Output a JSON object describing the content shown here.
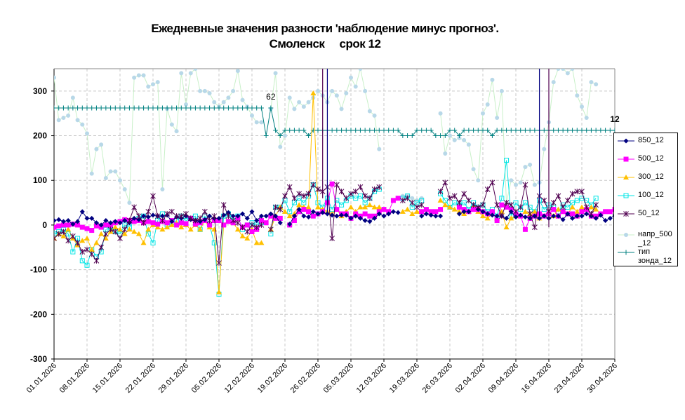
{
  "chart_data": {
    "type": "line",
    "title_line1": "Ежедневные значения разности 'наблюдение минус прогноз'.",
    "title_line2": "Смоленск     срок 12",
    "ylim": [
      -300,
      350
    ],
    "yticks": [
      "-300",
      "-200",
      "-100",
      "0",
      "100",
      "200",
      "300"
    ],
    "ytick_values": [
      -300,
      -200,
      -100,
      0,
      100,
      200,
      300
    ],
    "xlim": [
      "2026-01-01",
      "2026-04-30"
    ],
    "xticks": [
      "01.01.2026",
      "08.01.2026",
      "15.01.2026",
      "22.01.2026",
      "29.01.2026",
      "05.02.2026",
      "12.02.2026",
      "19.02.2026",
      "26.02.2026",
      "05.03.2026",
      "12.03.2026",
      "19.03.2026",
      "26.03.2026",
      "02.04.2026",
      "09.04.2026",
      "16.04.2026",
      "23.04.2026",
      "30.04.2026"
    ],
    "grid": true,
    "legend_position": "right",
    "annotations": [
      {
        "text": "62",
        "x": "2026-02-16",
        "y": 262
      },
      {
        "text": "12",
        "x": "2026-04-30",
        "y": 212
      }
    ],
    "series": [
      {
        "name": "850_12",
        "color": "#000080",
        "marker": "diamond",
        "values": [
          10,
          12,
          8,
          10,
          2,
          8,
          30,
          15,
          15,
          5,
          0,
          10,
          5,
          8,
          5,
          10,
          5,
          15,
          12,
          20,
          18,
          22,
          20,
          20,
          22,
          8,
          18,
          15,
          20,
          12,
          10,
          8,
          12,
          20,
          15,
          15,
          22,
          28,
          20,
          20,
          25,
          15,
          30,
          10,
          20,
          20,
          25,
          20,
          5,
          null,
          2,
          20,
          35,
          20,
          18,
          30,
          25,
          28,
          25,
          22,
          20,
          22,
          22,
          15,
          20,
          15,
          10,
          8,
          15,
          25,
          20,
          25,
          30,
          28,
          null,
          null,
          null,
          null,
          20,
          25,
          22,
          20,
          20,
          null,
          null,
          null,
          25,
          30,
          30,
          null,
          35,
          30,
          25,
          22,
          20,
          20,
          15,
          30,
          18,
          22,
          18,
          15,
          20,
          15,
          20,
          15,
          20,
          20,
          12,
          25,
          15,
          20,
          20,
          25,
          20,
          15,
          22,
          10,
          15,
          22
        ]
      },
      {
        "name": "500_12",
        "color": "#FF00FF",
        "marker": "square",
        "values": [
          -5,
          -2,
          0,
          0,
          2,
          0,
          -5,
          -8,
          -12,
          -2,
          -5,
          0,
          0,
          5,
          8,
          12,
          10,
          8,
          10,
          5,
          8,
          5,
          2,
          8,
          5,
          10,
          0,
          5,
          3,
          15,
          2,
          5,
          10,
          0,
          10,
          10,
          0,
          8,
          5,
          15,
          -5,
          0,
          -15,
          -10,
          10,
          5,
          20,
          15,
          15,
          null,
          0,
          10,
          30,
          35,
          30,
          20,
          25,
          30,
          50,
          92,
          35,
          25,
          25,
          15,
          25,
          20,
          25,
          20,
          20,
          30,
          35,
          30,
          55,
          60,
          null,
          null,
          null,
          null,
          30,
          35,
          30,
          30,
          35,
          null,
          null,
          null,
          40,
          35,
          30,
          35,
          35,
          30,
          25,
          30,
          10,
          45,
          40,
          35,
          25,
          20,
          -10,
          15,
          20,
          25,
          20,
          25,
          35,
          20,
          30,
          25,
          25,
          20,
          30,
          35,
          20,
          20,
          25,
          30,
          30,
          35
        ]
      },
      {
        "name": "300_12",
        "color": "#FFC000",
        "marker": "triangle",
        "values": [
          -30,
          -20,
          -25,
          -10,
          -30,
          -45,
          -35,
          -30,
          -55,
          -40,
          -20,
          -30,
          -15,
          -5,
          -10,
          -20,
          -10,
          -15,
          -20,
          -40,
          -10,
          0,
          -5,
          -10,
          -5,
          0,
          5,
          -5,
          0,
          -10,
          0,
          -10,
          10,
          -5,
          -10,
          -150,
          0,
          10,
          5,
          -10,
          -25,
          -30,
          -10,
          -40,
          -40,
          null,
          -10,
          20,
          40,
          30,
          20,
          25,
          45,
          40,
          40,
          295,
          40,
          35,
          30,
          25,
          35,
          20,
          30,
          40,
          30,
          40,
          40,
          45,
          40,
          40,
          null,
          null,
          null,
          null,
          30,
          35,
          25,
          30,
          30,
          null,
          null,
          null,
          55,
          45,
          40,
          35,
          30,
          25,
          30,
          40,
          30,
          20,
          15,
          25,
          15,
          30,
          -5,
          15,
          20,
          20,
          30,
          25,
          30,
          15,
          20,
          30,
          20,
          35,
          30,
          25,
          40,
          30,
          40,
          35,
          40,
          35
        ]
      },
      {
        "name": "100_12",
        "color": "#00E5E5",
        "marker": "square-open",
        "values": [
          -20,
          -15,
          -10,
          -20,
          -60,
          -30,
          -80,
          -90,
          -55,
          -70,
          -60,
          -10,
          -5,
          -15,
          -20,
          0,
          -5,
          10,
          15,
          20,
          -20,
          -40,
          10,
          25,
          0,
          5,
          10,
          20,
          10,
          15,
          20,
          -10,
          20,
          0,
          -40,
          -155,
          20,
          25,
          10,
          20,
          -10,
          0,
          5,
          0,
          5,
          null,
          -20,
          40,
          40,
          55,
          30,
          50,
          60,
          50,
          65,
          90,
          50,
          40,
          60,
          35,
          55,
          45,
          55,
          65,
          60,
          65,
          50,
          60,
          75,
          80,
          null,
          null,
          null,
          null,
          60,
          65,
          40,
          50,
          55,
          null,
          null,
          null,
          70,
          55,
          40,
          50,
          45,
          50,
          35,
          50,
          40,
          45,
          30,
          35,
          20,
          60,
          145,
          20,
          50,
          35,
          50,
          40,
          30,
          55,
          35,
          45,
          40,
          30,
          45,
          40,
          50,
          55,
          60,
          55,
          45,
          60
        ]
      },
      {
        "name": "50_12",
        "color": "#500050",
        "marker": "star",
        "values": [
          -30,
          -20,
          -15,
          -35,
          -25,
          -40,
          -60,
          -55,
          -65,
          -80,
          -50,
          -20,
          -10,
          -15,
          -30,
          -10,
          10,
          40,
          20,
          5,
          30,
          65,
          20,
          10,
          25,
          30,
          20,
          20,
          25,
          15,
          10,
          15,
          30,
          10,
          20,
          -85,
          45,
          20,
          10,
          5,
          -5,
          -15,
          0,
          -5,
          0,
          null,
          -10,
          40,
          35,
          65,
          85,
          60,
          70,
          65,
          70,
          90,
          80,
          75,
          85,
          -30,
          90,
          75,
          60,
          70,
          75,
          85,
          65,
          60,
          80,
          85,
          null,
          null,
          null,
          null,
          55,
          60,
          50,
          40,
          45,
          null,
          null,
          null,
          75,
          95,
          60,
          65,
          50,
          70,
          55,
          45,
          40,
          45,
          80,
          95,
          45,
          20,
          50,
          45,
          30,
          40,
          90,
          25,
          -5,
          65,
          55,
          30,
          50,
          65,
          40,
          55,
          70,
          75,
          75,
          40,
          25,
          45
        ]
      },
      {
        "name": "напр_500 _12",
        "color": "#B8D8E8",
        "line_color": "#C8F0C8",
        "marker": "circle",
        "values": [
          330,
          235,
          240,
          245,
          285,
          235,
          225,
          205,
          115,
          170,
          180,
          105,
          120,
          120,
          100,
          80,
          50,
          330,
          335,
          335,
          310,
          315,
          320,
          80,
          260,
          225,
          210,
          340,
          270,
          340,
          350,
          300,
          300,
          295,
          275,
          265,
          275,
          285,
          300,
          345,
          280,
          265,
          245,
          230,
          230,
          null,
          260,
          340,
          175,
          200,
          285,
          260,
          275,
          265,
          275,
          285,
          300,
          290,
          275,
          300,
          290,
          260,
          295,
          330,
          310,
          350,
          300,
          255,
          245,
          170,
          null,
          null,
          null,
          null,
          65,
          65,
          60,
          55,
          60,
          null,
          null,
          null,
          250,
          160,
          200,
          190,
          195,
          190,
          180,
          125,
          100,
          250,
          270,
          325,
          240,
          300,
          50,
          100,
          90,
          95,
          130,
          135,
          90,
          95,
          170,
          230,
          320,
          350,
          350,
          340,
          350,
          290,
          265,
          240,
          320,
          315
        ]
      },
      {
        "name": "тип зонда_12",
        "color": "#008080",
        "marker": "plus",
        "values": [
          262,
          262,
          262,
          262,
          262,
          262,
          262,
          262,
          262,
          262,
          262,
          262,
          262,
          262,
          262,
          262,
          262,
          262,
          262,
          262,
          262,
          262,
          262,
          262,
          262,
          262,
          262,
          262,
          262,
          262,
          262,
          262,
          262,
          262,
          262,
          262,
          262,
          262,
          262,
          262,
          262,
          262,
          262,
          262,
          262,
          200,
          262,
          212,
          200,
          212,
          212,
          212,
          212,
          212,
          200,
          212,
          212,
          212,
          212,
          212,
          212,
          212,
          212,
          212,
          212,
          212,
          212,
          212,
          212,
          212,
          212,
          212,
          212,
          212,
          200,
          200,
          200,
          212,
          212,
          212,
          212,
          200,
          200,
          200,
          212,
          212,
          200,
          212,
          212,
          212,
          212,
          212,
          212,
          200,
          212,
          212,
          212,
          212,
          212,
          212,
          212,
          212,
          212,
          212,
          212,
          212,
          212,
          212,
          212,
          212,
          212,
          212,
          212,
          212,
          212,
          212,
          212,
          212,
          212,
          212
        ]
      }
    ],
    "spikes": [
      {
        "series": "50_12",
        "x": "2026-02-27",
        "y_from": 60,
        "y_to": 350
      },
      {
        "series": "850_12",
        "x": "2026-02-28",
        "y_from": 20,
        "y_to": 350
      },
      {
        "series": "850_12",
        "x": "2026-04-14",
        "y_from": 15,
        "y_to": 350
      },
      {
        "series": "50_12",
        "x": "2026-04-16",
        "y_from": -5,
        "y_to": 350
      }
    ]
  }
}
